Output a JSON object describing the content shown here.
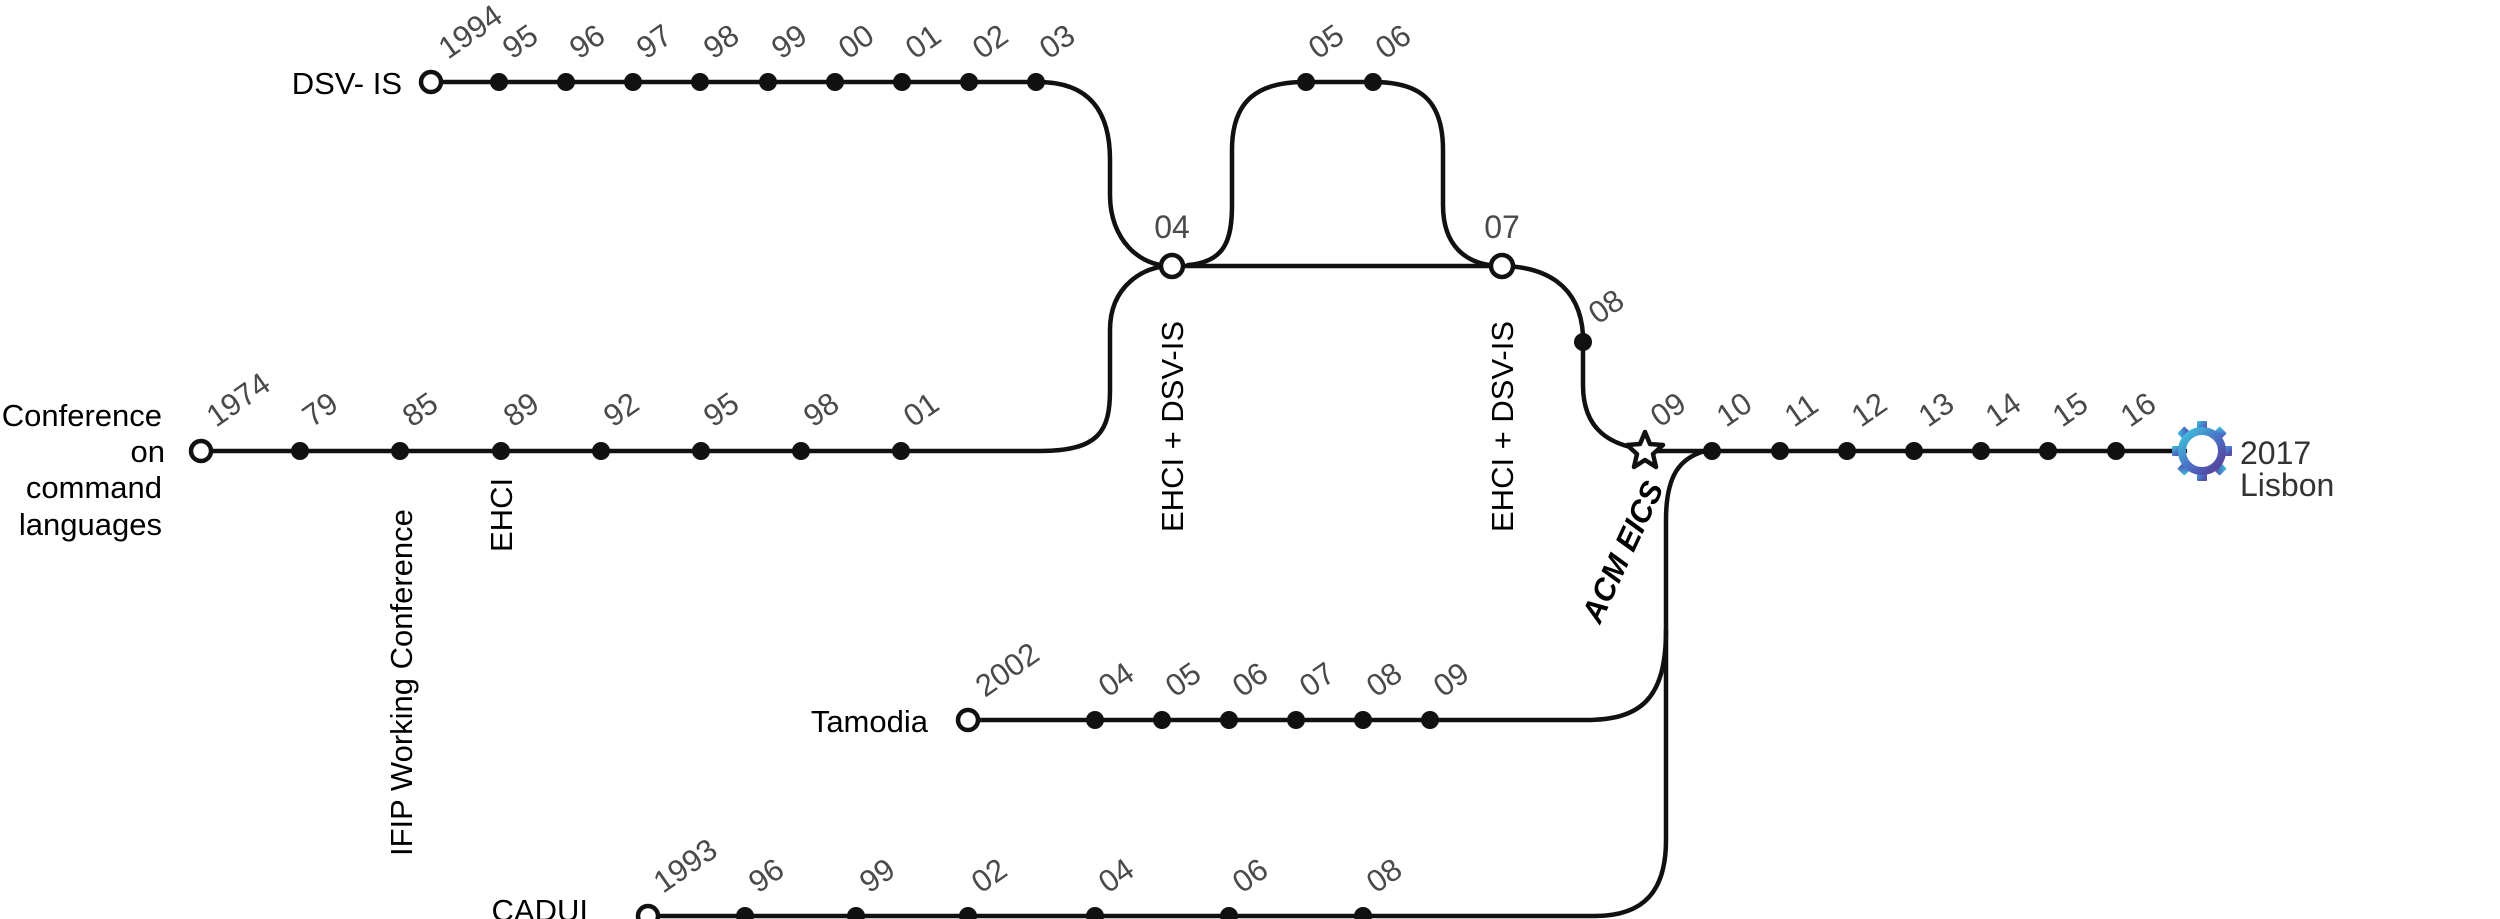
{
  "tracks": {
    "command": {
      "label_lines": [
        "Conference",
        "on",
        "command",
        "languages"
      ],
      "years": [
        "1974",
        "79",
        "85",
        "89",
        "92",
        "95",
        "98",
        "01"
      ],
      "stop_labels": [
        "IFIP Working Conference",
        "EHCI"
      ]
    },
    "dsvis": {
      "label": "DSV- IS",
      "years": [
        "1994",
        "95",
        "96",
        "97",
        "98",
        "99",
        "00",
        "01",
        "02",
        "03"
      ]
    },
    "merged": {
      "years": [
        "04",
        "05",
        "06",
        "07",
        "08"
      ],
      "merge_labels": [
        "EHCI  +  DSV-IS",
        "EHCI  +  DSV-IS"
      ]
    },
    "eics": {
      "label": "ACM EICS",
      "years": [
        "09",
        "10",
        "11",
        "12",
        "13",
        "14",
        "15",
        "16"
      ]
    },
    "tamodia": {
      "label": "Tamodia",
      "years": [
        "2002",
        "04",
        "05",
        "06",
        "07",
        "08",
        "09"
      ]
    },
    "cadui": {
      "label": "CADUI",
      "years": [
        "1993",
        "96",
        "99",
        "02",
        "04",
        "06",
        "08"
      ]
    }
  },
  "destination": {
    "year": "2017",
    "city": "Lisbon",
    "icon": "gear-icon",
    "colors": {
      "light": "#3cc6dc",
      "mid": "#4a74c8",
      "dark": "#5a3a94"
    }
  }
}
